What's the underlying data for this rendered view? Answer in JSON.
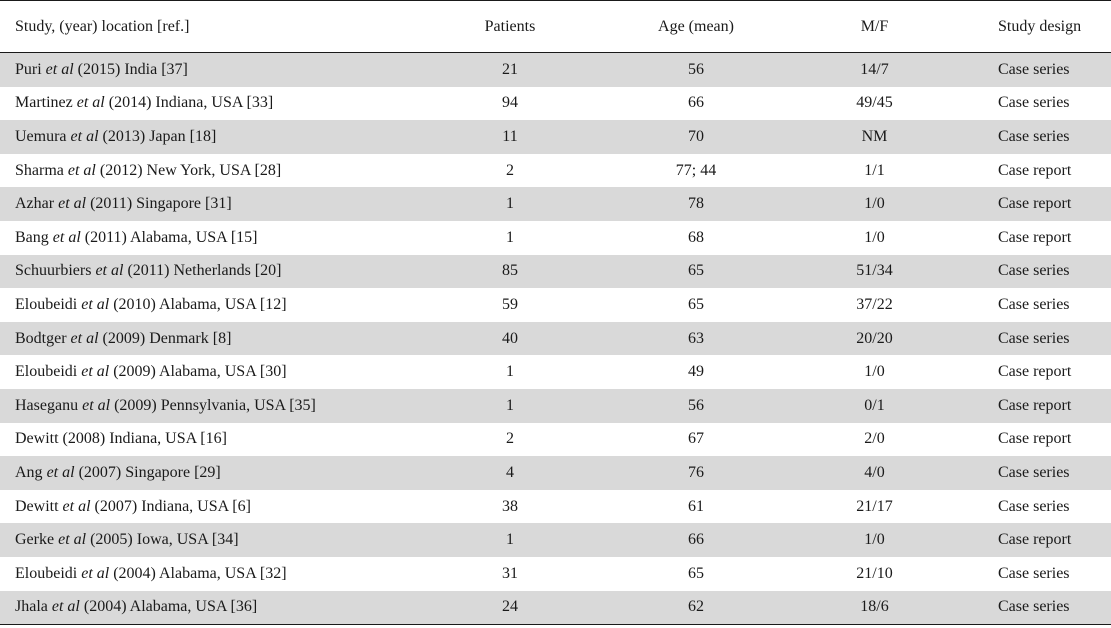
{
  "columns": {
    "study": "Study, (year) location [ref.]",
    "patients": "Patients",
    "age": "Age (mean)",
    "mf": "M/F",
    "design": "Study design"
  },
  "rows": [
    {
      "author": "Puri",
      "etal": "et al",
      "rest": "(2015) India [37]",
      "patients": "21",
      "age": "56",
      "mf": "14/7",
      "design": "Case series"
    },
    {
      "author": "Martinez",
      "etal": "et al",
      "rest": "(2014) Indiana, USA [33]",
      "patients": "94",
      "age": "66",
      "mf": "49/45",
      "design": "Case series"
    },
    {
      "author": "Uemura",
      "etal": "et al",
      "rest": "(2013) Japan [18]",
      "patients": "11",
      "age": "70",
      "mf": "NM",
      "design": "Case series"
    },
    {
      "author": "Sharma",
      "etal": "et al",
      "rest": "(2012) New York, USA [28]",
      "patients": "2",
      "age": "77; 44",
      "mf": "1/1",
      "design": "Case report"
    },
    {
      "author": "Azhar",
      "etal": "et al",
      "rest": "(2011) Singapore [31]",
      "patients": "1",
      "age": "78",
      "mf": "1/0",
      "design": "Case report"
    },
    {
      "author": "Bang",
      "etal": "et al",
      "rest": "(2011) Alabama, USA [15]",
      "patients": "1",
      "age": "68",
      "mf": "1/0",
      "design": "Case report"
    },
    {
      "author": "Schuurbiers",
      "etal": "et al",
      "rest": "(2011) Netherlands [20]",
      "patients": "85",
      "age": "65",
      "mf": "51/34",
      "design": "Case series"
    },
    {
      "author": "Eloubeidi",
      "etal": "et al",
      "rest": "(2010) Alabama, USA [12]",
      "patients": "59",
      "age": "65",
      "mf": "37/22",
      "design": "Case series"
    },
    {
      "author": "Bodtger",
      "etal": "et al",
      "rest": "(2009) Denmark [8]",
      "patients": "40",
      "age": "63",
      "mf": "20/20",
      "design": "Case series"
    },
    {
      "author": "Eloubeidi",
      "etal": "et al",
      "rest": "(2009) Alabama, USA [30]",
      "patients": "1",
      "age": "49",
      "mf": "1/0",
      "design": "Case report"
    },
    {
      "author": "Haseganu",
      "etal": "et al",
      "rest": "(2009) Pennsylvania, USA [35]",
      "patients": "1",
      "age": "56",
      "mf": "0/1",
      "design": "Case report"
    },
    {
      "author": "Dewitt",
      "etal": "",
      "rest": "(2008) Indiana, USA [16]",
      "patients": "2",
      "age": "67",
      "mf": "2/0",
      "design": "Case report"
    },
    {
      "author": "Ang",
      "etal": "et al",
      "rest": "(2007) Singapore [29]",
      "patients": "4",
      "age": "76",
      "mf": "4/0",
      "design": "Case series"
    },
    {
      "author": "Dewitt",
      "etal": "et al",
      "rest": "(2007) Indiana, USA [6]",
      "patients": "38",
      "age": "61",
      "mf": "21/17",
      "design": "Case series"
    },
    {
      "author": "Gerke",
      "etal": "et al",
      "rest": "(2005) Iowa, USA [34]",
      "patients": "1",
      "age": "66",
      "mf": "1/0",
      "design": "Case report"
    },
    {
      "author": "Eloubeidi",
      "etal": "et al",
      "rest": "(2004) Alabama, USA [32]",
      "patients": "31",
      "age": "65",
      "mf": "21/10",
      "design": "Case series"
    },
    {
      "author": "Jhala",
      "etal": "et al",
      "rest": "(2004) Alabama, USA [36]",
      "patients": "24",
      "age": "62",
      "mf": "18/6",
      "design": "Case series"
    }
  ]
}
